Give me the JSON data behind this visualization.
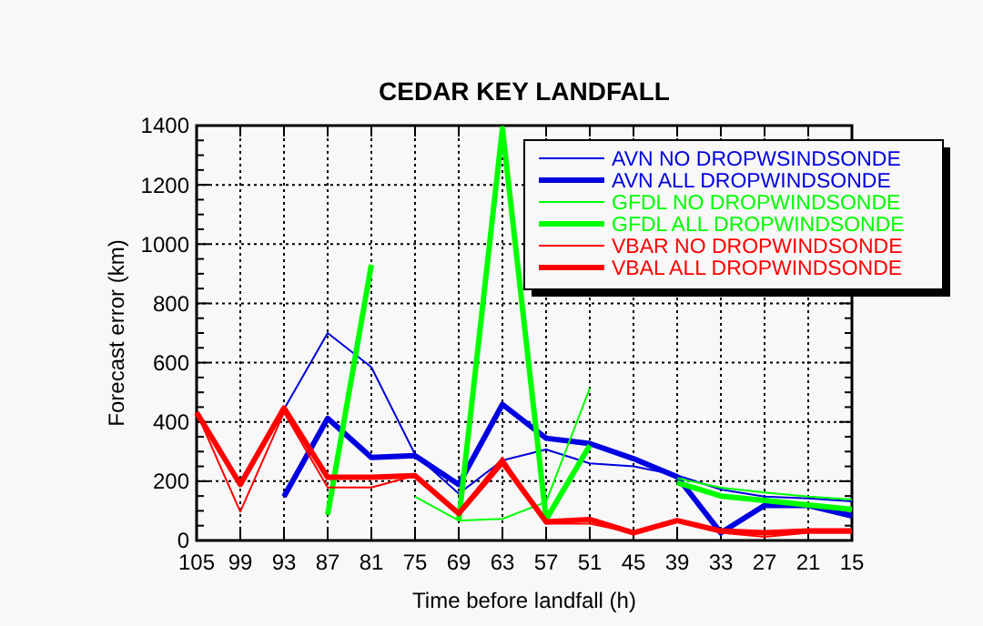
{
  "chart_data": {
    "type": "line",
    "title": "CEDAR KEY LANDFALL",
    "xlabel": "Time before landfall (h)",
    "ylabel": "Forecast error (km)",
    "x": [
      105,
      99,
      93,
      87,
      81,
      75,
      69,
      63,
      57,
      51,
      45,
      39,
      33,
      27,
      21,
      15
    ],
    "xlim": [
      105,
      15
    ],
    "xticks": [
      105,
      99,
      93,
      87,
      81,
      75,
      69,
      63,
      57,
      51,
      45,
      39,
      33,
      27,
      21,
      15
    ],
    "ylim": [
      0,
      1400
    ],
    "yticks": [
      0,
      200,
      400,
      600,
      800,
      1000,
      1200,
      1400
    ],
    "grid": true,
    "legend": "top right",
    "series": [
      {
        "name": "AVN NO DROPWSINDSONDE",
        "color": "#0000e0",
        "values": [
          null,
          null,
          443,
          700,
          585,
          290,
          158,
          270,
          307,
          260,
          250,
          220,
          172,
          148,
          142,
          132
        ]
      },
      {
        "name": "AVN ALL DROPWINDSONDE",
        "color": "#0000e0",
        "values": [
          null,
          null,
          148,
          412,
          280,
          286,
          189,
          459,
          345,
          327,
          276,
          215,
          26,
          118,
          118,
          83
        ]
      },
      {
        "name": "GFDL NO DROPWINDSONDE",
        "color": "#00ff00",
        "values": [
          null,
          null,
          null,
          null,
          null,
          148,
          67,
          73,
          130,
          514,
          null,
          210,
          178,
          162,
          148,
          138
        ]
      },
      {
        "name": "GFDL ALL DROPWINDSONDE",
        "color": "#00ff00",
        "values": [
          null,
          null,
          null,
          87,
          930,
          null,
          67,
          1390,
          71,
          321,
          null,
          195,
          150,
          135,
          120,
          105
        ]
      },
      {
        "name": "VBAR NO DROPWINDSONDE",
        "color": "#ff0000",
        "values": [
          432,
          97,
          432,
          179,
          179,
          219,
          97,
          280,
          57,
          57,
          26,
          67,
          26,
          12,
          26,
          26
        ]
      },
      {
        "name": "VBAL ALL DROPWINDSONDE",
        "color": "#ff0000",
        "values": [
          432,
          189,
          447,
          213,
          213,
          219,
          91,
          264,
          63,
          71,
          26,
          67,
          32,
          26,
          32,
          32
        ]
      }
    ]
  }
}
